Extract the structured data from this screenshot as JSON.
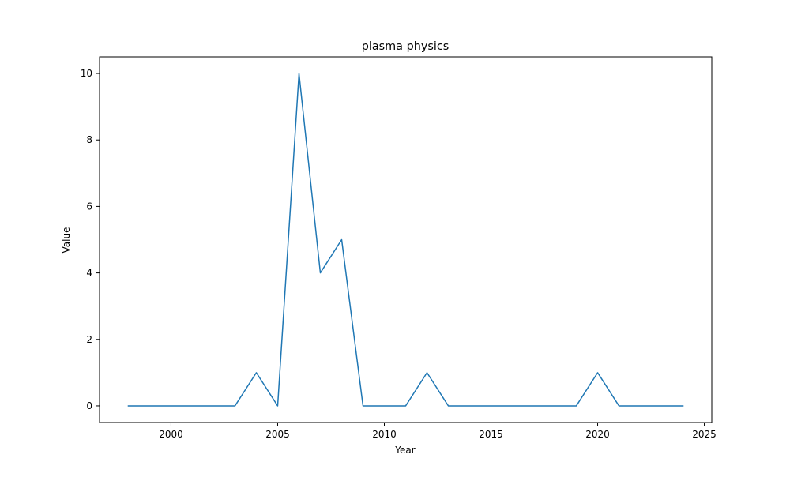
{
  "chart_data": {
    "type": "line",
    "title": "plasma physics",
    "xlabel": "Year",
    "ylabel": "Value",
    "xlim": [
      1996.65,
      2025.35
    ],
    "ylim": [
      -0.5,
      10.5
    ],
    "xticks": [
      2000,
      2005,
      2010,
      2015,
      2020,
      2025
    ],
    "yticks": [
      0,
      2,
      4,
      6,
      8,
      10
    ],
    "grid": false,
    "legend": "none",
    "series": [
      {
        "color": "#1f77b4",
        "x": [
          1998,
          1999,
          2000,
          2001,
          2002,
          2003,
          2004,
          2005,
          2006,
          2007,
          2008,
          2009,
          2010,
          2011,
          2012,
          2013,
          2014,
          2015,
          2016,
          2017,
          2018,
          2019,
          2020,
          2021,
          2022,
          2023,
          2024
        ],
        "values": [
          0,
          0,
          0,
          0,
          0,
          0,
          1,
          0,
          10,
          4,
          5,
          0,
          0,
          0,
          1,
          0,
          0,
          0,
          0,
          0,
          0,
          0,
          1,
          0,
          0,
          0,
          0
        ]
      }
    ]
  }
}
